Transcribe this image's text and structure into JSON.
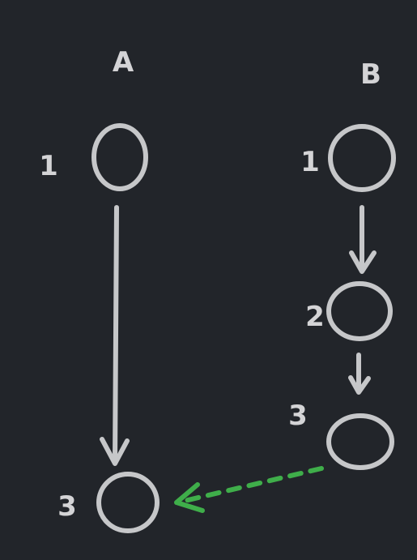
{
  "colors": {
    "background": "#22252a",
    "stroke": "#c6c7c9",
    "text": "#d4d4d6",
    "highlight": "#3fae4a"
  },
  "columns": {
    "a": {
      "title": "A",
      "nodes": [
        {
          "label": "1"
        },
        {
          "label": "3"
        }
      ]
    },
    "b": {
      "title": "B",
      "nodes": [
        {
          "label": "1"
        },
        {
          "label": "2"
        },
        {
          "label": "3"
        }
      ]
    }
  }
}
